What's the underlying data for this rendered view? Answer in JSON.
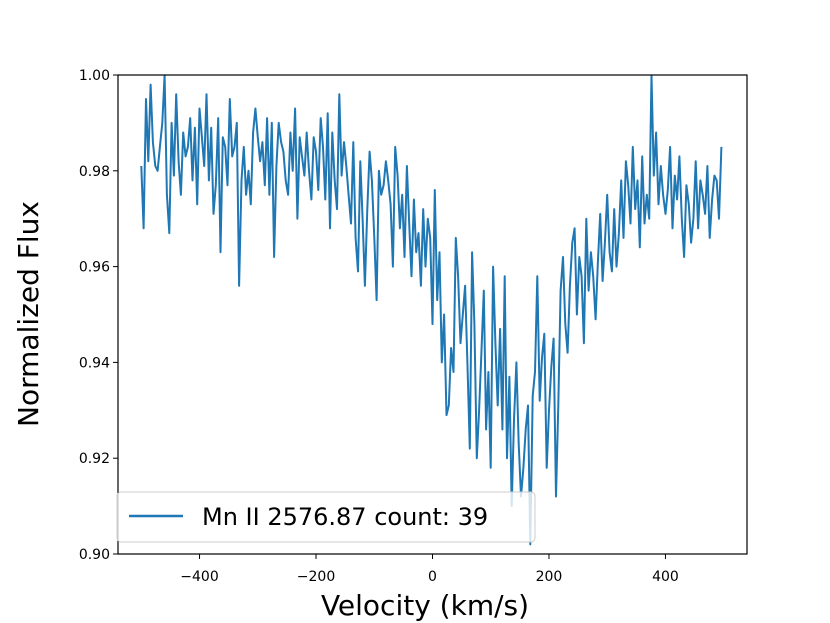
{
  "chart_data": {
    "type": "line",
    "title": "",
    "xlabel": "Velocity (km/s)",
    "ylabel": "Normalized Flux",
    "xlim": [
      -540,
      540
    ],
    "ylim": [
      0.9,
      1.0
    ],
    "xticks": [
      -400,
      -200,
      0,
      200,
      400
    ],
    "xtick_labels": [
      "−400",
      "−200",
      "0",
      "200",
      "400"
    ],
    "yticks": [
      0.9,
      0.92,
      0.94,
      0.96,
      0.98,
      1.0
    ],
    "ytick_labels": [
      "0.90",
      "0.92",
      "0.94",
      "0.96",
      "0.98",
      "1.00"
    ],
    "grid": false,
    "legend_position": "lower-left",
    "series": [
      {
        "name": "Mn II 2576.87 count: 39",
        "color": "#1f77b4",
        "x": [
          -500,
          -496,
          -492,
          -488,
          -484,
          -480,
          -476,
          -472,
          -468,
          -464,
          -460,
          -456,
          -452,
          -448,
          -444,
          -440,
          -436,
          -432,
          -428,
          -424,
          -420,
          -416,
          -412,
          -408,
          -404,
          -400,
          -396,
          -392,
          -388,
          -384,
          -380,
          -376,
          -372,
          -368,
          -364,
          -360,
          -356,
          -352,
          -348,
          -344,
          -340,
          -336,
          -332,
          -328,
          -324,
          -320,
          -316,
          -312,
          -308,
          -304,
          -300,
          -296,
          -292,
          -288,
          -284,
          -280,
          -276,
          -272,
          -268,
          -264,
          -260,
          -256,
          -252,
          -248,
          -244,
          -240,
          -236,
          -232,
          -228,
          -224,
          -220,
          -216,
          -212,
          -208,
          -204,
          -200,
          -196,
          -192,
          -188,
          -184,
          -180,
          -176,
          -172,
          -168,
          -164,
          -160,
          -156,
          -152,
          -148,
          -144,
          -140,
          -136,
          -132,
          -128,
          -124,
          -120,
          -116,
          -112,
          -108,
          -104,
          -100,
          -96,
          -92,
          -88,
          -84,
          -80,
          -76,
          -72,
          -68,
          -64,
          -60,
          -56,
          -52,
          -48,
          -44,
          -40,
          -36,
          -32,
          -28,
          -24,
          -20,
          -16,
          -12,
          -8,
          -4,
          0,
          4,
          8,
          12,
          16,
          20,
          24,
          28,
          32,
          36,
          40,
          44,
          48,
          52,
          56,
          60,
          64,
          68,
          72,
          76,
          80,
          84,
          88,
          92,
          96,
          100,
          104,
          108,
          112,
          116,
          120,
          124,
          128,
          132,
          136,
          140,
          144,
          148,
          152,
          156,
          160,
          164,
          168,
          172,
          176,
          180,
          184,
          188,
          192,
          196,
          200,
          204,
          208,
          212,
          216,
          220,
          224,
          228,
          232,
          236,
          240,
          244,
          248,
          252,
          256,
          260,
          264,
          268,
          272,
          276,
          280,
          284,
          288,
          292,
          296,
          300,
          304,
          308,
          312,
          316,
          320,
          324,
          328,
          332,
          336,
          340,
          344,
          348,
          352,
          356,
          360,
          364,
          368,
          372,
          376,
          380,
          384,
          388,
          392,
          396,
          400,
          404,
          408,
          412,
          416,
          420,
          424,
          428,
          432,
          436,
          440,
          444,
          448,
          452,
          456,
          460,
          464,
          468,
          472,
          476,
          480,
          484,
          488,
          492,
          496
        ],
        "y": [
          0.981,
          0.968,
          0.995,
          0.982,
          0.998,
          0.986,
          0.981,
          0.98,
          0.985,
          0.99,
          1.0,
          0.975,
          0.967,
          0.99,
          0.979,
          0.996,
          0.982,
          0.975,
          0.988,
          0.983,
          0.985,
          0.991,
          0.978,
          0.989,
          0.973,
          0.993,
          0.987,
          0.981,
          0.996,
          0.978,
          0.989,
          0.971,
          0.977,
          0.991,
          0.963,
          0.987,
          0.985,
          0.977,
          0.995,
          0.983,
          0.985,
          0.99,
          0.956,
          0.978,
          0.985,
          0.975,
          0.98,
          0.973,
          0.988,
          0.993,
          0.987,
          0.982,
          0.986,
          0.977,
          0.991,
          0.975,
          0.99,
          0.962,
          0.981,
          0.99,
          0.986,
          0.984,
          0.978,
          0.975,
          0.988,
          0.98,
          0.993,
          0.97,
          0.987,
          0.983,
          0.979,
          0.988,
          0.98,
          0.974,
          0.987,
          0.984,
          0.976,
          0.991,
          0.985,
          0.974,
          0.992,
          0.968,
          0.988,
          0.978,
          0.972,
          0.996,
          0.979,
          0.986,
          0.981,
          0.975,
          0.969,
          0.986,
          0.966,
          0.959,
          0.982,
          0.97,
          0.956,
          0.972,
          0.984,
          0.978,
          0.966,
          0.953,
          0.98,
          0.975,
          0.977,
          0.982,
          0.978,
          0.973,
          0.96,
          0.985,
          0.979,
          0.968,
          0.975,
          0.962,
          0.981,
          0.969,
          0.958,
          0.974,
          0.963,
          0.967,
          0.956,
          0.972,
          0.96,
          0.97,
          0.966,
          0.948,
          0.976,
          0.953,
          0.963,
          0.94,
          0.95,
          0.929,
          0.931,
          0.943,
          0.938,
          0.966,
          0.958,
          0.944,
          0.95,
          0.956,
          0.94,
          0.922,
          0.963,
          0.948,
          0.92,
          0.93,
          0.942,
          0.955,
          0.926,
          0.938,
          0.918,
          0.96,
          0.944,
          0.931,
          0.947,
          0.926,
          0.958,
          0.92,
          0.937,
          0.91,
          0.928,
          0.94,
          0.923,
          0.912,
          0.918,
          0.926,
          0.931,
          0.902,
          0.933,
          0.938,
          0.958,
          0.932,
          0.941,
          0.946,
          0.918,
          0.93,
          0.939,
          0.945,
          0.912,
          0.931,
          0.955,
          0.962,
          0.948,
          0.942,
          0.956,
          0.965,
          0.968,
          0.95,
          0.962,
          0.958,
          0.944,
          0.97,
          0.955,
          0.963,
          0.958,
          0.949,
          0.961,
          0.971,
          0.957,
          0.965,
          0.975,
          0.963,
          0.959,
          0.972,
          0.96,
          0.967,
          0.978,
          0.966,
          0.982,
          0.977,
          0.969,
          0.985,
          0.972,
          0.978,
          0.964,
          0.983,
          0.969,
          0.975,
          0.97,
          1.0,
          0.979,
          0.988,
          0.973,
          0.981,
          0.975,
          0.971,
          0.976,
          0.985,
          0.968,
          0.979,
          0.974,
          0.983,
          0.97,
          0.962,
          0.977,
          0.973,
          0.965,
          0.97,
          0.982,
          0.968,
          0.978,
          0.975,
          0.971,
          0.981,
          0.966,
          0.974,
          0.979,
          0.978,
          0.97,
          0.985
        ]
      }
    ]
  }
}
